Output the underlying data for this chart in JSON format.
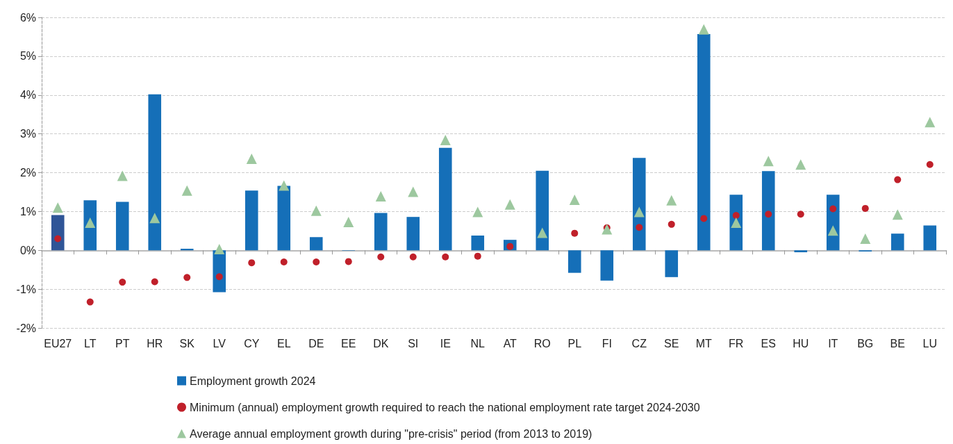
{
  "chart_data": {
    "type": "bar",
    "categories": [
      "EU27",
      "LT",
      "PT",
      "HR",
      "SK",
      "LV",
      "CY",
      "EL",
      "DE",
      "EE",
      "DK",
      "SI",
      "IE",
      "NL",
      "AT",
      "RO",
      "PL",
      "FI",
      "CZ",
      "SE",
      "MT",
      "FR",
      "ES",
      "HU",
      "IT",
      "BG",
      "BE",
      "LU"
    ],
    "series": [
      {
        "name": "Employment growth 2024",
        "color": "#156fb8",
        "colors": [
          "#2f5597",
          "#156fb8",
          "#156fb8",
          "#156fb8",
          "#156fb8",
          "#156fb8",
          "#156fb8",
          "#156fb8",
          "#156fb8",
          "#156fb8",
          "#156fb8",
          "#156fb8",
          "#156fb8",
          "#156fb8",
          "#156fb8",
          "#156fb8",
          "#156fb8",
          "#156fb8",
          "#156fb8",
          "#156fb8",
          "#156fb8",
          "#156fb8",
          "#156fb8",
          "#156fb8",
          "#156fb8",
          "#156fb8",
          "#156fb8",
          "#156fb8"
        ],
        "values": [
          0.91,
          1.29,
          1.25,
          4.02,
          0.04,
          -1.08,
          1.54,
          1.66,
          0.34,
          -0.01,
          0.96,
          0.86,
          2.64,
          0.38,
          0.27,
          2.05,
          -0.58,
          -0.78,
          2.38,
          -0.69,
          5.57,
          1.43,
          2.04,
          -0.05,
          1.43,
          -0.03,
          0.43,
          0.64
        ]
      },
      {
        "name": "Minimum (annual) employment growth required to reach the national employment rate target 2024-2030",
        "type": "scatter",
        "marker": "circle",
        "color": "#c0202a",
        "values": [
          0.3,
          -1.33,
          -0.82,
          -0.81,
          -0.7,
          -0.68,
          -0.32,
          -0.3,
          -0.3,
          -0.29,
          -0.17,
          -0.17,
          -0.17,
          -0.15,
          0.1,
          null,
          0.44,
          0.58,
          0.59,
          0.67,
          0.82,
          0.9,
          0.93,
          0.93,
          1.07,
          1.08,
          1.82,
          2.21
        ]
      },
      {
        "name": "Average annual employment growth during \"pre-crisis\" period (from 2013 to 2019)",
        "type": "scatter",
        "marker": "triangle",
        "color": "#9dc89f",
        "values": [
          1.1,
          0.71,
          1.92,
          0.83,
          1.54,
          0.03,
          2.36,
          1.67,
          1.02,
          0.73,
          1.39,
          1.51,
          2.84,
          0.99,
          1.18,
          0.45,
          1.3,
          0.54,
          0.99,
          1.29,
          5.69,
          0.71,
          2.3,
          2.21,
          0.51,
          0.3,
          0.92,
          3.3
        ]
      }
    ],
    "ylim": [
      -2,
      6
    ],
    "yticks": [
      {
        "value": -2,
        "label": "-2%"
      },
      {
        "value": -1,
        "label": "-1%"
      },
      {
        "value": 0,
        "label": "0%"
      },
      {
        "value": 1,
        "label": "1%"
      },
      {
        "value": 2,
        "label": "2%"
      },
      {
        "value": 3,
        "label": "3%"
      },
      {
        "value": 4,
        "label": "4%"
      },
      {
        "value": 5,
        "label": "5%"
      },
      {
        "value": 6,
        "label": "6%"
      }
    ],
    "grid": "y",
    "legend": "bottom"
  }
}
